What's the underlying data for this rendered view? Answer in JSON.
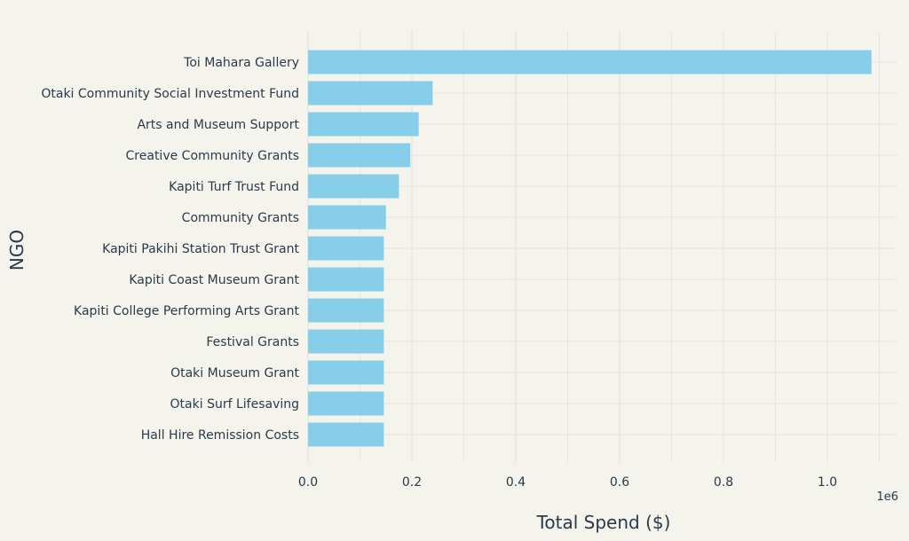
{
  "chart_data": {
    "type": "bar",
    "orientation": "horizontal",
    "categories": [
      "Toi Mahara Gallery",
      "Otaki Community Social Investment Fund",
      "Arts and Museum Support",
      "Creative Community Grants",
      "Kapiti Turf Trust Fund",
      "Community Grants",
      "Kapiti Pakihi Station Trust Grant",
      "Kapiti Coast Museum Grant",
      "Kapiti College Performing Arts Grant",
      "Festival Grants",
      "Otaki Museum Grant",
      "Otaki Surf Lifesaving",
      "Hall Hire Remission Costs"
    ],
    "values": [
      1085000,
      240000,
      213000,
      197000,
      175000,
      150000,
      146000,
      146000,
      146000,
      146000,
      146000,
      146000,
      146000
    ],
    "xlabel": "Total Spend ($)",
    "ylabel": "NGO",
    "x_exponent_label": "1e6",
    "xlim": [
      0,
      1.1
    ],
    "x_scale_factor": 1000000,
    "x_ticks": [
      "0.0",
      "0.2",
      "0.4",
      "0.6",
      "0.8",
      "1.0"
    ],
    "x_tick_values": [
      0,
      0.2,
      0.4,
      0.6,
      0.8,
      1.0
    ],
    "grid": true,
    "bar_color": "#87ceeb",
    "grid_color": "#e4e3dc",
    "background_color": "#f4f3ec"
  }
}
